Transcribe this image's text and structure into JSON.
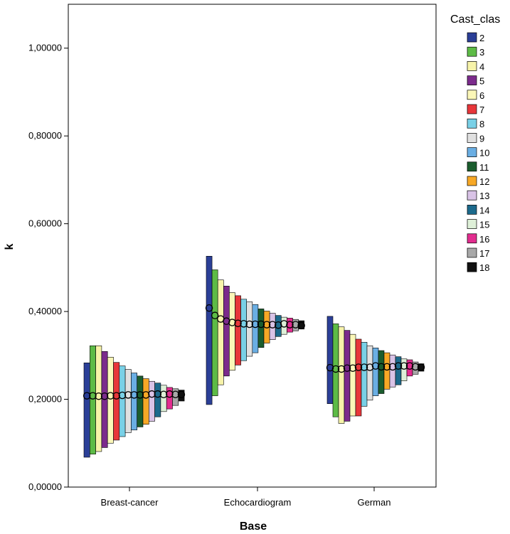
{
  "chart_data": {
    "type": "range-bar",
    "title": "",
    "xlabel": "Base",
    "ylabel": "k",
    "ylim": [
      0,
      1.1
    ],
    "yticks": [
      0,
      0.2,
      0.4,
      0.6,
      0.8,
      1.0
    ],
    "ytick_labels": [
      "0,00000",
      "0,20000",
      "0,40000",
      "0,60000",
      "0,80000",
      "1,00000"
    ],
    "categories": [
      "Breast-cancer",
      "Echocardiogram",
      "German"
    ],
    "legend": {
      "title": "Cast_clas",
      "placement": "right",
      "entries": [
        {
          "label": "2",
          "color": "#2b3f97"
        },
        {
          "label": "3",
          "color": "#5dbb46"
        },
        {
          "label": "4",
          "color": "#f7f3a9"
        },
        {
          "label": "5",
          "color": "#7b2b8c"
        },
        {
          "label": "6",
          "color": "#fbf7b8"
        },
        {
          "label": "7",
          "color": "#e8363a"
        },
        {
          "label": "8",
          "color": "#79d0e6"
        },
        {
          "label": "9",
          "color": "#e0e0e0"
        },
        {
          "label": "10",
          "color": "#6aaee3"
        },
        {
          "label": "11",
          "color": "#1b5d2e"
        },
        {
          "label": "12",
          "color": "#f7a826"
        },
        {
          "label": "13",
          "color": "#d9c3e6"
        },
        {
          "label": "14",
          "color": "#1c6a8c"
        },
        {
          "label": "15",
          "color": "#def0d8"
        },
        {
          "label": "16",
          "color": "#e22d8f"
        },
        {
          "label": "17",
          "color": "#a8a8a8"
        },
        {
          "label": "18",
          "color": "#111111"
        }
      ]
    },
    "series": [
      {
        "category": "Breast-cancer",
        "low": [
          0.068,
          0.075,
          0.081,
          0.09,
          0.1,
          0.107,
          0.115,
          0.124,
          0.13,
          0.137,
          0.143,
          0.15,
          0.16,
          0.172,
          0.178,
          0.186,
          0.196
        ],
        "high": [
          0.283,
          0.322,
          0.322,
          0.309,
          0.296,
          0.284,
          0.276,
          0.268,
          0.26,
          0.253,
          0.247,
          0.241,
          0.237,
          0.232,
          0.227,
          0.224,
          0.221
        ],
        "mean": [
          0.208,
          0.208,
          0.207,
          0.207,
          0.208,
          0.208,
          0.209,
          0.21,
          0.21,
          0.21,
          0.21,
          0.212,
          0.212,
          0.211,
          0.212,
          0.211,
          0.211
        ]
      },
      {
        "category": "Echocardiogram",
        "low": [
          0.188,
          0.208,
          0.233,
          0.253,
          0.266,
          0.278,
          0.288,
          0.298,
          0.306,
          0.318,
          0.328,
          0.336,
          0.343,
          0.348,
          0.353,
          0.356,
          0.36
        ],
        "high": [
          0.526,
          0.495,
          0.472,
          0.458,
          0.443,
          0.436,
          0.428,
          0.422,
          0.416,
          0.406,
          0.401,
          0.396,
          0.391,
          0.387,
          0.385,
          0.382,
          0.379
        ],
        "mean": [
          0.408,
          0.391,
          0.383,
          0.378,
          0.375,
          0.373,
          0.372,
          0.371,
          0.371,
          0.371,
          0.37,
          0.37,
          0.369,
          0.372,
          0.37,
          0.37,
          0.368
        ]
      },
      {
        "category": "German",
        "low": [
          0.19,
          0.16,
          0.145,
          0.15,
          0.162,
          0.162,
          0.184,
          0.198,
          0.208,
          0.213,
          0.223,
          0.228,
          0.233,
          0.242,
          0.253,
          0.257,
          0.264
        ],
        "high": [
          0.389,
          0.372,
          0.365,
          0.357,
          0.348,
          0.337,
          0.33,
          0.322,
          0.317,
          0.311,
          0.306,
          0.301,
          0.297,
          0.292,
          0.29,
          0.285,
          0.281
        ],
        "mean": [
          0.272,
          0.269,
          0.269,
          0.271,
          0.271,
          0.273,
          0.273,
          0.273,
          0.276,
          0.274,
          0.274,
          0.274,
          0.276,
          0.276,
          0.276,
          0.274,
          0.273
        ]
      }
    ]
  }
}
